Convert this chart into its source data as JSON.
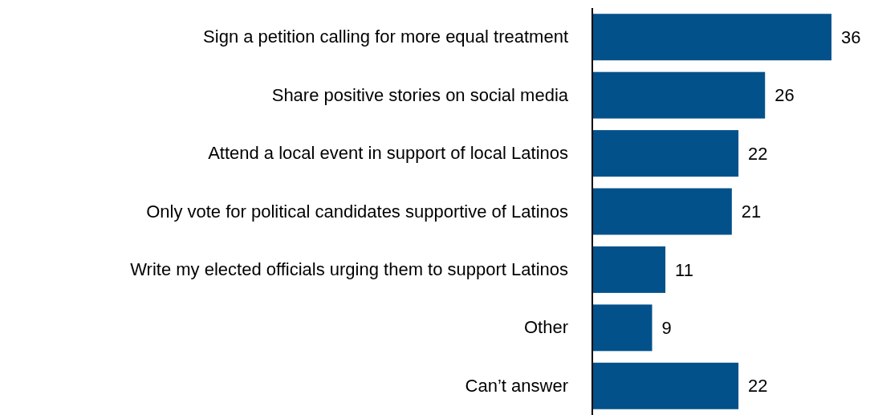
{
  "chart_data": {
    "type": "bar",
    "orientation": "horizontal",
    "categories": [
      "Sign a petition calling for more equal treatment",
      "Share positive stories on social media",
      "Attend a local event  in support of local Latinos",
      "Only vote for political candidates supportive of Latinos",
      "Write my elected officials urging them to support Latinos",
      "Other",
      "Can’t answer"
    ],
    "values": [
      36,
      26,
      22,
      21,
      11,
      9,
      22
    ],
    "color": "#03518a",
    "xlim": [
      0,
      36
    ],
    "data_labels": true,
    "tick_labels": "y"
  }
}
